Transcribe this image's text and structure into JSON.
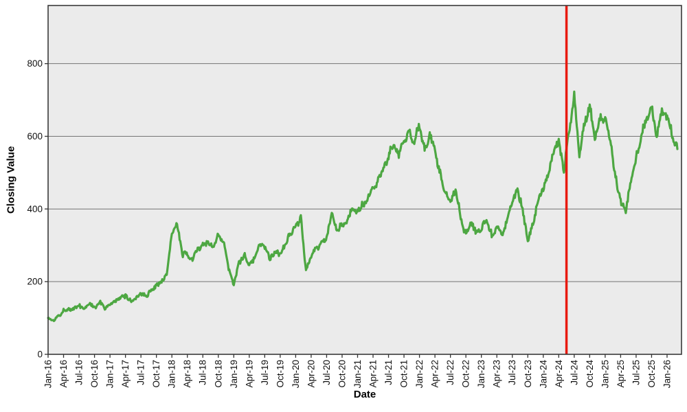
{
  "chart_data": {
    "type": "line",
    "title": "",
    "xlabel": "Date",
    "ylabel": "Closing Value",
    "grid": "horizontal",
    "legend": "none",
    "plot_bg_color": "#ebebeb",
    "grid_color": "#747474",
    "frame_color": "#3a3a3a",
    "tick_color": "#333333",
    "ylim": [
      0,
      960
    ],
    "y_ticks": [
      0,
      200,
      400,
      600,
      800
    ],
    "xlim_months": [
      0,
      122.8
    ],
    "x_tick_step_months": 3,
    "x_tick_labels": [
      "Jan-16",
      "Apr-16",
      "Jul-16",
      "Oct-16",
      "Jan-17",
      "Apr-17",
      "Jul-17",
      "Oct-17",
      "Jan-18",
      "Apr-18",
      "Jul-18",
      "Oct-18",
      "Jan-19",
      "Apr-19",
      "Jul-19",
      "Oct-19",
      "Jan-20",
      "Apr-20",
      "Jul-20",
      "Oct-20",
      "Jan-21",
      "Apr-21",
      "Jul-21",
      "Oct-21",
      "Jan-22",
      "Apr-22",
      "Jul-22",
      "Oct-22",
      "Jan-23",
      "Apr-23",
      "Jul-23",
      "Oct-23",
      "Jan-24",
      "Apr-24",
      "Jul-24",
      "Oct-24",
      "Jan-25",
      "Apr-25",
      "Jul-25",
      "Oct-25",
      "Jan-26"
    ],
    "series": [
      {
        "name": "closing-value",
        "color": "#4da742",
        "line_width": 3.2,
        "start_month": "Jan-16",
        "interval": "monthly",
        "values": [
          100,
          92,
          110,
          124,
          130,
          124,
          133,
          127,
          137,
          130,
          142,
          126,
          136,
          144,
          152,
          160,
          148,
          158,
          170,
          164,
          178,
          190,
          200,
          224,
          330,
          360,
          272,
          280,
          262,
          286,
          296,
          310,
          296,
          326,
          300,
          240,
          198,
          252,
          270,
          246,
          268,
          296,
          288,
          262,
          284,
          276,
          296,
          322,
          352,
          388,
          232,
          268,
          288,
          308,
          318,
          382,
          344,
          352,
          368,
          394,
          402,
          424,
          442,
          458,
          482,
          512,
          548,
          578,
          552,
          592,
          630,
          568,
          625,
          575,
          602,
          552,
          498,
          438,
          415,
          452,
          382,
          336,
          358,
          338,
          342,
          382,
          328,
          362,
          330,
          378,
          420,
          466,
          405,
          315,
          365,
          425,
          455,
          505,
          558,
          596,
          505,
          612,
          705,
          535,
          630,
          688,
          592,
          645,
          640,
          598,
          490,
          430,
          398,
          490,
          540,
          600,
          645,
          680,
          598,
          672,
          650,
          600,
          565
        ]
      }
    ],
    "vline": {
      "name": "event-marker",
      "x_month_index": 100.5,
      "color": "#e8190f",
      "line_width": 3.5
    }
  }
}
